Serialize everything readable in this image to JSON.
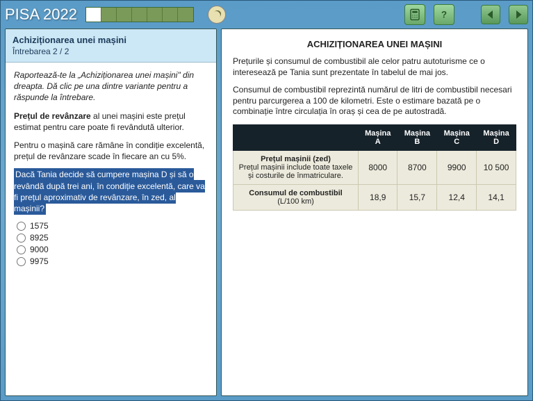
{
  "brand": "PISA 2022",
  "progress": {
    "total": 7,
    "filled": 1
  },
  "header": {
    "title": "Achiziționarea unei mașini",
    "subtitle": "Întrebarea 2 / 2"
  },
  "left": {
    "intro_html": "Raportează-te la „Achiziționarea unei mașini\" din dreapta. Dă clic pe una dintre variante pentru a răspunde la întrebare.",
    "para2_prefix_bold": "Prețul de revânzare",
    "para2_rest": " al unei mașini este prețul estimat pentru care poate fi revândută ulterior.",
    "para3": "Pentru o mașină care rămâne în condiție excelentă, prețul de revânzare scade în fiecare an cu 5%.",
    "highlight": "Dacă Tania decide să cumpere mașina D și să o revândă după trei ani, în condiție excelentă, care va fi prețul aproximativ de revânzare, în zed, al mașinii?",
    "options": [
      "1575",
      "8925",
      "9000",
      "9975"
    ]
  },
  "right": {
    "title": "ACHIZIȚIONAREA UNEI MAȘINI",
    "p1": "Prețurile și consumul de combustibil ale celor patru autoturisme ce o interesează pe Tania sunt prezentate în tabelul de mai jos.",
    "p2": "Consumul de combustibil reprezintă numărul de litri de combustibil necesari pentru parcurgerea a 100 de kilometri. Este o estimare bazată pe o combinație între circulația în oraș și cea de pe autostradă.",
    "table": {
      "columns": [
        "Mașina A",
        "Mașina B",
        "Mașina C",
        "Mașina D"
      ],
      "rows": [
        {
          "head_title": "Prețul mașinii (zed)",
          "head_sub": "Prețul mașinii include toate taxele și costurile de înmatriculare.",
          "cells": [
            "8000",
            "8700",
            "9900",
            "10 500"
          ]
        },
        {
          "head_title": "Consumul de combustibil",
          "head_sub": "(L/100 km)",
          "cells": [
            "18,9",
            "15,7",
            "12,4",
            "14,1"
          ]
        }
      ]
    }
  },
  "colors": {
    "headerBg": "#cce7f5",
    "highlightBg": "#2a5a9a",
    "tableHeadBg": "#16222a",
    "tableCellBg": "#eceadc"
  }
}
